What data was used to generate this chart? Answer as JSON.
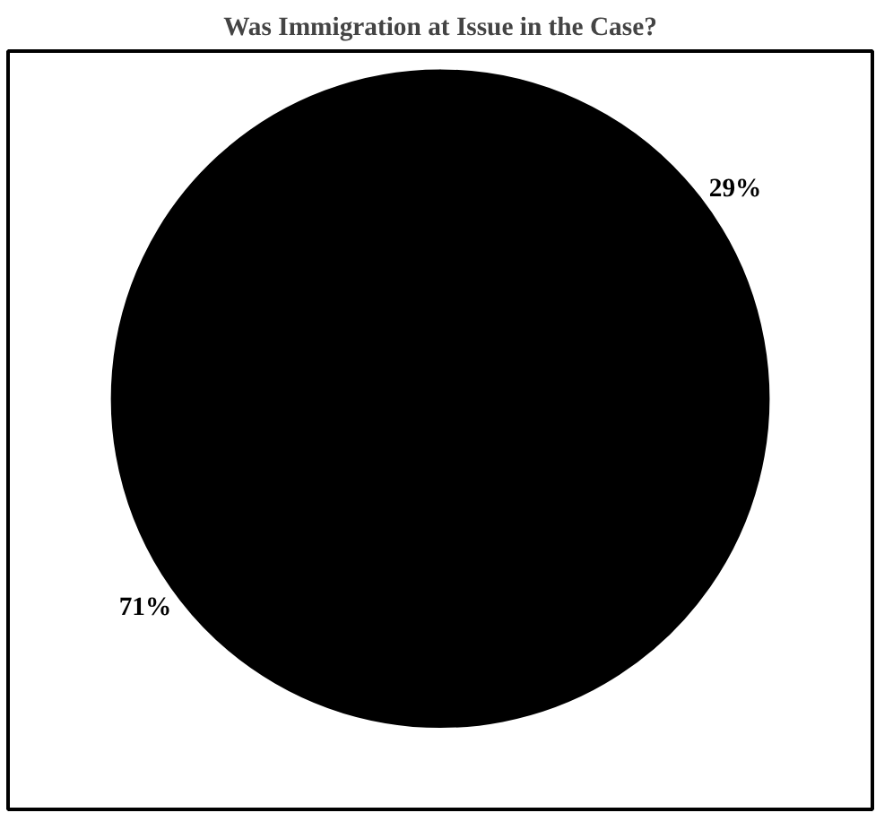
{
  "chart_data": {
    "type": "pie",
    "title": "Was Immigration at Issue in the Case?",
    "categories": [
      null,
      null
    ],
    "values": [
      29,
      71
    ],
    "colors": [
      "#000000",
      "#000000"
    ],
    "value_labels": [
      "29%",
      "71%"
    ]
  }
}
